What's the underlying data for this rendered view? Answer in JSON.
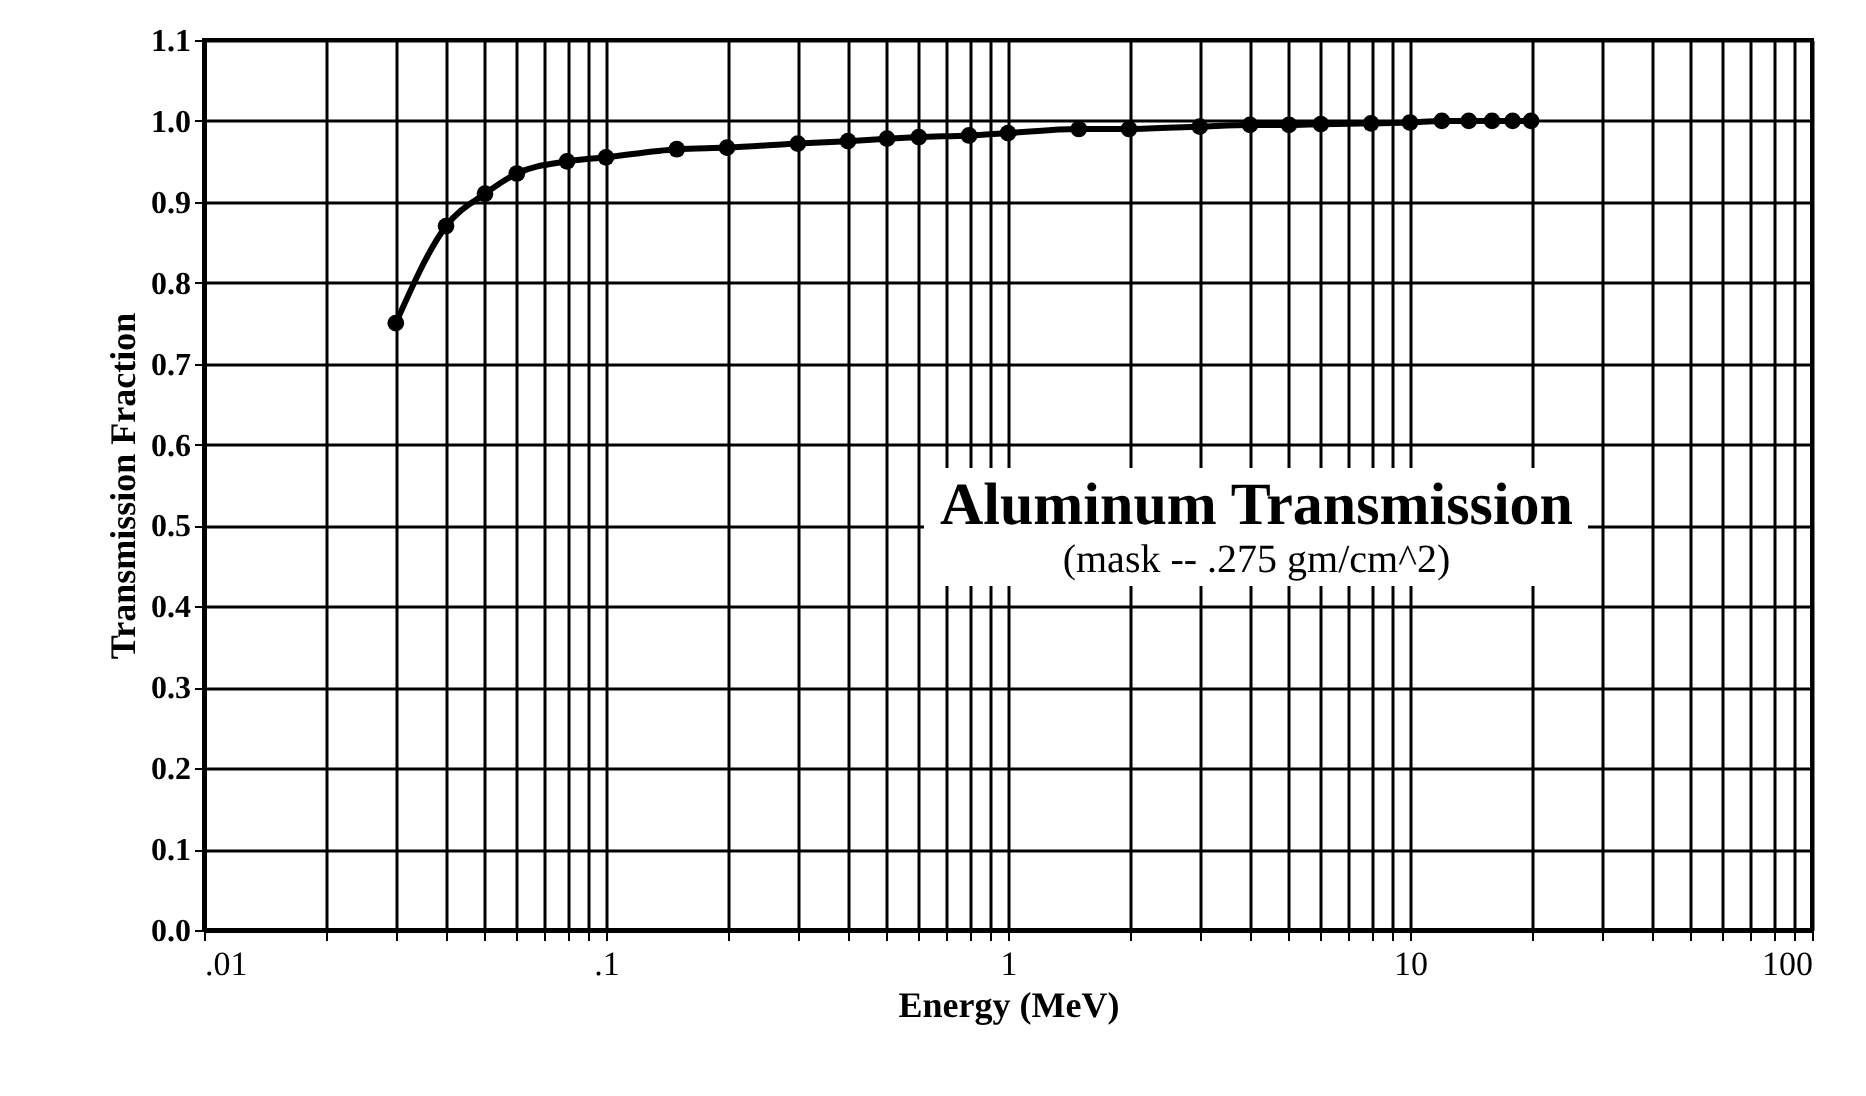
{
  "chart_data": {
    "type": "line",
    "title": "Aluminum Transmission",
    "subtitle": "(mask --  .275 gm/cm^2)",
    "xlabel": "Energy (MeV)",
    "ylabel": "Transmission Fraction",
    "x": [
      0.03,
      0.04,
      0.05,
      0.06,
      0.08,
      0.1,
      0.15,
      0.2,
      0.3,
      0.4,
      0.5,
      0.6,
      0.8,
      1,
      1.5,
      2,
      3,
      4,
      5,
      6,
      8,
      10,
      12,
      14,
      16,
      18,
      20
    ],
    "series": [
      {
        "color": "#000000",
        "values": [
          0.75,
          0.87,
          0.91,
          0.935,
          0.95,
          0.955,
          0.965,
          0.967,
          0.972,
          0.975,
          0.978,
          0.98,
          0.982,
          0.985,
          0.99,
          0.99,
          0.993,
          0.995,
          0.995,
          0.996,
          0.997,
          0.998,
          1.0,
          1.0,
          1.0,
          1.0,
          1.0
        ]
      }
    ],
    "log": "x",
    "xlim": [
      0.01,
      100
    ],
    "ylim": [
      0,
      1.1
    ],
    "xticks": [
      {
        "value": 0.01,
        "label": ".01"
      },
      {
        "value": 0.02,
        "label": null
      },
      {
        "value": 0.03,
        "label": null
      },
      {
        "value": 0.04,
        "label": null
      },
      {
        "value": 0.05,
        "label": null
      },
      {
        "value": 0.06,
        "label": null
      },
      {
        "value": 0.07,
        "label": null
      },
      {
        "value": 0.08,
        "label": null
      },
      {
        "value": 0.09,
        "label": null
      },
      {
        "value": 0.1,
        "label": ".1"
      },
      {
        "value": 0.2,
        "label": null
      },
      {
        "value": 0.3,
        "label": null
      },
      {
        "value": 0.4,
        "label": null
      },
      {
        "value": 0.5,
        "label": null
      },
      {
        "value": 0.6,
        "label": null
      },
      {
        "value": 0.7,
        "label": null
      },
      {
        "value": 0.8,
        "label": null
      },
      {
        "value": 0.9,
        "label": null
      },
      {
        "value": 1,
        "label": "1"
      },
      {
        "value": 2,
        "label": null
      },
      {
        "value": 3,
        "label": null
      },
      {
        "value": 4,
        "label": null
      },
      {
        "value": 5,
        "label": null
      },
      {
        "value": 6,
        "label": null
      },
      {
        "value": 7,
        "label": null
      },
      {
        "value": 8,
        "label": null
      },
      {
        "value": 9,
        "label": null
      },
      {
        "value": 10,
        "label": "10"
      },
      {
        "value": 20,
        "label": null
      },
      {
        "value": 30,
        "label": null
      },
      {
        "value": 40,
        "label": null
      },
      {
        "value": 50,
        "label": null
      },
      {
        "value": 60,
        "label": null
      },
      {
        "value": 70,
        "label": null
      },
      {
        "value": 80,
        "label": null
      },
      {
        "value": 90,
        "label": null
      },
      {
        "value": 100,
        "label": "100"
      }
    ],
    "yticks": [
      {
        "value": 0,
        "label": "0.0"
      },
      {
        "value": 0.1,
        "label": "0.1"
      },
      {
        "value": 0.2,
        "label": "0.2"
      },
      {
        "value": 0.3,
        "label": "0.3"
      },
      {
        "value": 0.4,
        "label": "0.4"
      },
      {
        "value": 0.5,
        "label": "0.5"
      },
      {
        "value": 0.6,
        "label": "0.6"
      },
      {
        "value": 0.7,
        "label": "0.7"
      },
      {
        "value": 0.8,
        "label": "0.8"
      },
      {
        "value": 0.9,
        "label": "0.9"
      },
      {
        "value": 1,
        "label": "1.0"
      },
      {
        "value": 1.1,
        "label": "1.1"
      }
    ],
    "grid": true,
    "marker": "circle",
    "line_style": "solid",
    "legend": false
  }
}
